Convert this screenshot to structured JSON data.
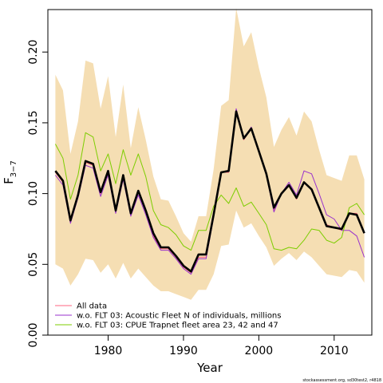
{
  "chart_data": {
    "type": "line",
    "xlabel": "Year",
    "ylabel_main": "F",
    "ylabel_sub": "3−7",
    "xlim": [
      1972,
      2015
    ],
    "ylim": [
      0,
      0.23
    ],
    "x_ticks": [
      1980,
      1990,
      2000,
      2010
    ],
    "y_ticks": [
      0.0,
      0.05,
      0.1,
      0.15,
      0.2
    ],
    "y_tick_labels": [
      "0.00",
      "0.05",
      "0.10",
      "0.15",
      "0.20"
    ],
    "grid": false,
    "legend_position": "bottom-left",
    "credit": "stockassessment.org, sd30test2, r4818",
    "years": [
      1973,
      1974,
      1975,
      1976,
      1977,
      1978,
      1979,
      1980,
      1981,
      1982,
      1983,
      1984,
      1985,
      1986,
      1987,
      1988,
      1989,
      1990,
      1991,
      1992,
      1993,
      1994,
      1995,
      1996,
      1997,
      1998,
      1999,
      2000,
      2001,
      2002,
      2003,
      2004,
      2005,
      2006,
      2007,
      2008,
      2009,
      2010,
      2011,
      2012,
      2013,
      2014
    ],
    "band": {
      "color": "#f5deb3",
      "lower": [
        0.05,
        0.047,
        0.035,
        0.043,
        0.054,
        0.053,
        0.044,
        0.05,
        0.04,
        0.051,
        0.04,
        0.047,
        0.041,
        0.035,
        0.031,
        0.031,
        0.029,
        0.027,
        0.025,
        0.032,
        0.032,
        0.043,
        0.063,
        0.064,
        0.088,
        0.076,
        0.079,
        0.07,
        0.062,
        0.049,
        0.054,
        0.058,
        0.053,
        0.059,
        0.055,
        0.049,
        0.043,
        0.042,
        0.041,
        0.046,
        0.045,
        0.037
      ],
      "upper": [
        0.184,
        0.173,
        0.128,
        0.151,
        0.194,
        0.192,
        0.16,
        0.183,
        0.14,
        0.177,
        0.132,
        0.161,
        0.138,
        0.112,
        0.096,
        0.095,
        0.084,
        0.072,
        0.066,
        0.084,
        0.084,
        0.117,
        0.162,
        0.166,
        0.231,
        0.204,
        0.214,
        0.189,
        0.168,
        0.133,
        0.145,
        0.154,
        0.141,
        0.158,
        0.151,
        0.131,
        0.113,
        0.111,
        0.109,
        0.127,
        0.127,
        0.11
      ]
    },
    "series": [
      {
        "name": "All data",
        "color": "#ff6680",
        "values": [
          0.115,
          0.108,
          0.081,
          0.099,
          0.122,
          0.12,
          0.1,
          0.115,
          0.088,
          0.112,
          0.086,
          0.101,
          0.087,
          0.07,
          0.061,
          0.061,
          0.055,
          0.048,
          0.044,
          0.055,
          0.055,
          0.084,
          0.115,
          0.115,
          0.159,
          0.138,
          0.146,
          0.13,
          0.113,
          0.088,
          0.1,
          0.106,
          0.096,
          0.108,
          0.103,
          0.09,
          0.078,
          0.076,
          0.074,
          0.086,
          0.086,
          0.072
        ]
      },
      {
        "name": "w.o. FLT 03: Acoustic Fleet   N of individuals, millions",
        "color": "#9932cc",
        "values": [
          0.113,
          0.106,
          0.079,
          0.097,
          0.12,
          0.118,
          0.098,
          0.113,
          0.086,
          0.11,
          0.084,
          0.099,
          0.085,
          0.069,
          0.06,
          0.06,
          0.054,
          0.047,
          0.043,
          0.054,
          0.054,
          0.083,
          0.115,
          0.116,
          0.16,
          0.139,
          0.147,
          0.13,
          0.113,
          0.087,
          0.1,
          0.108,
          0.099,
          0.116,
          0.114,
          0.1,
          0.085,
          0.082,
          0.074,
          0.074,
          0.07,
          0.055
        ]
      },
      {
        "name": "w.o. FLT 03: CPUE Trapnet fleet area 23, 42 and 47",
        "color": "#7ccd00",
        "values": [
          0.135,
          0.125,
          0.096,
          0.113,
          0.143,
          0.14,
          0.116,
          0.128,
          0.107,
          0.131,
          0.113,
          0.128,
          0.112,
          0.088,
          0.078,
          0.076,
          0.071,
          0.063,
          0.06,
          0.074,
          0.074,
          0.091,
          0.099,
          0.093,
          0.104,
          0.091,
          0.094,
          0.086,
          0.078,
          0.061,
          0.06,
          0.062,
          0.061,
          0.067,
          0.075,
          0.074,
          0.067,
          0.065,
          0.069,
          0.09,
          0.093,
          0.085
        ]
      },
      {
        "name": "",
        "color": "#000000",
        "values": [
          0.116,
          0.109,
          0.081,
          0.099,
          0.123,
          0.121,
          0.101,
          0.116,
          0.088,
          0.113,
          0.086,
          0.102,
          0.088,
          0.072,
          0.062,
          0.062,
          0.056,
          0.049,
          0.045,
          0.057,
          0.057,
          0.085,
          0.115,
          0.116,
          0.158,
          0.139,
          0.146,
          0.13,
          0.114,
          0.09,
          0.1,
          0.106,
          0.097,
          0.108,
          0.103,
          0.09,
          0.077,
          0.076,
          0.075,
          0.086,
          0.085,
          0.072
        ]
      }
    ]
  }
}
